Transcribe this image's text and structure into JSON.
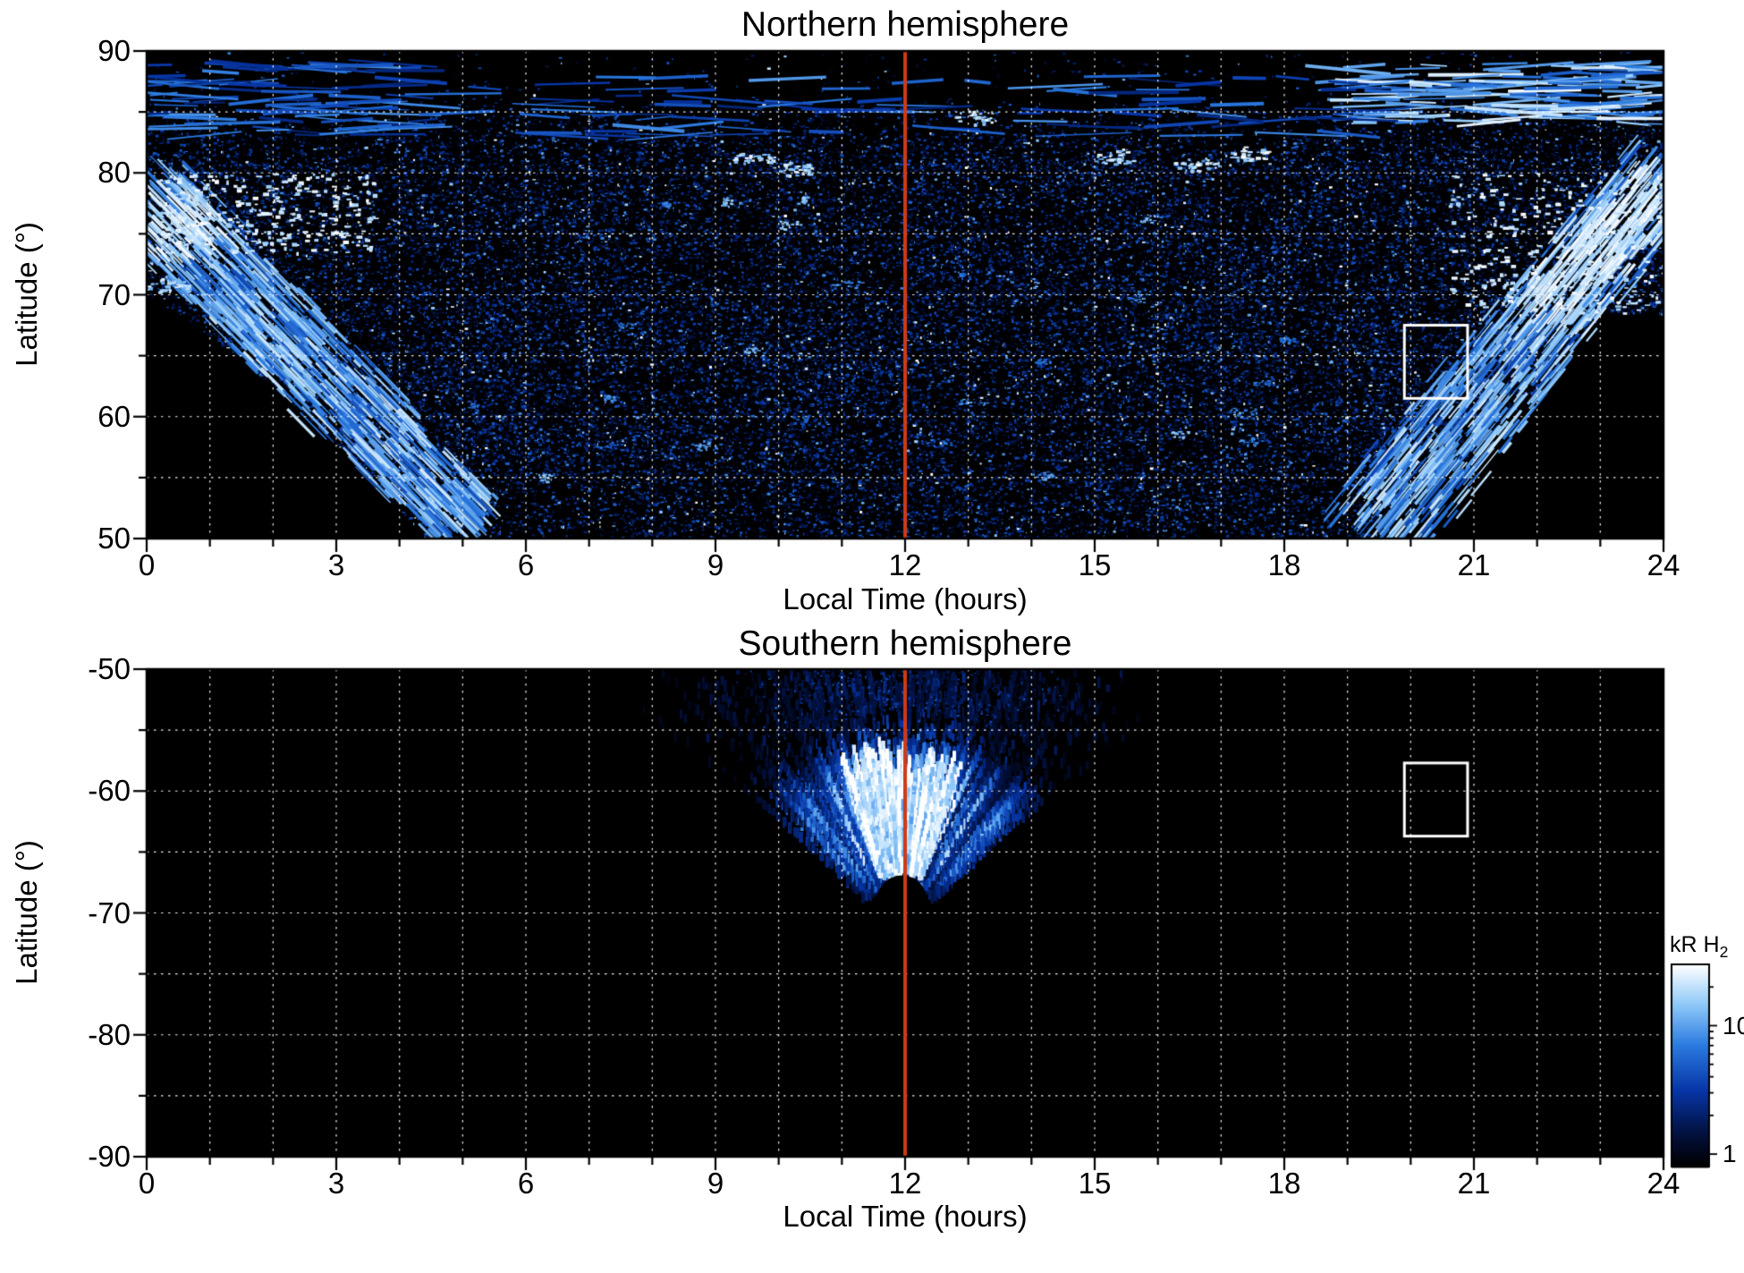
{
  "figure": {
    "background": "#ffffff",
    "text_color": "#000000",
    "frame_color": "#000000",
    "panels": [
      "Northern hemisphere",
      "Southern hemisphere"
    ]
  },
  "colorbar": {
    "label": "kR H",
    "label_sub": "2",
    "scale": "log",
    "range": [
      0.8,
      30
    ],
    "labeled_ticks": [
      10,
      1
    ],
    "minor_ticks": [
      20,
      9,
      8,
      7,
      6,
      5,
      4,
      3,
      2
    ],
    "colormap_stops": [
      {
        "t": 0.0,
        "color": "#000000"
      },
      {
        "t": 0.16,
        "color": "#02103c"
      },
      {
        "t": 0.38,
        "color": "#0736a8"
      },
      {
        "t": 0.6,
        "color": "#2b7ae0"
      },
      {
        "t": 0.8,
        "color": "#8ec8f8"
      },
      {
        "t": 1.0,
        "color": "#ffffff"
      }
    ]
  },
  "chart_data": [
    {
      "type": "heatmap",
      "hemisphere": "north",
      "title": "Northern hemisphere",
      "xlabel": "Local Time (hours)",
      "ylabel": "Latitude (°)",
      "xlim": [
        0,
        24
      ],
      "ylim": [
        50,
        90
      ],
      "xticks": [
        0,
        3,
        6,
        9,
        12,
        15,
        18,
        21,
        24
      ],
      "yticks": [
        90,
        80,
        70,
        60,
        50
      ],
      "x_minor_step": 1,
      "y_minor_step": 5,
      "grid": {
        "x_step": 1,
        "y_step": 5,
        "style": "dotted",
        "color": "#ffffff"
      },
      "intensity_units": "kR H2",
      "annotations": {
        "noon_meridian": {
          "local_time": 12,
          "color": "#cf3a16"
        },
        "selection_box": {
          "lt": [
            19.9,
            20.9
          ],
          "lat": [
            61.5,
            67.5
          ],
          "color": "#ffffff"
        }
      },
      "features": {
        "diffuse_speckle": {
          "lt": [
            0,
            24
          ],
          "lat": [
            50,
            83
          ],
          "note": "patchy faint H2 emission over most of the cap"
        },
        "dawn_arc": {
          "lt_path": [
            [
              0,
              78
            ],
            [
              5.1,
              51
            ]
          ],
          "width_deg": 7,
          "core": {
            "lt": [
              0.2,
              3.6
            ],
            "lat": [
              73.5,
              80
            ]
          }
        },
        "dusk_arc": {
          "lt_path": [
            [
              19.3,
              50
            ],
            [
              24,
              80
            ]
          ],
          "width_deg": 8,
          "core": {
            "lt": [
              20.6,
              24
            ],
            "lat": [
              68,
              80
            ]
          }
        },
        "polar_streak_bands": [
          {
            "lt": [
              0,
              4.5
            ],
            "lat": [
              83,
              89
            ],
            "bright": false
          },
          {
            "lt": [
              19,
              24
            ],
            "lat": [
              84,
              89
            ],
            "bright": true
          },
          {
            "lt": [
              4.5,
              19.5
            ],
            "lat": [
              83,
              88
            ],
            "bright": false
          }
        ],
        "bright_spots": [
          [
            9.6,
            81.2
          ],
          [
            10.2,
            80.3
          ],
          [
            15.3,
            81.3
          ],
          [
            16.6,
            80.8
          ],
          [
            17.4,
            81.6
          ],
          [
            13.1,
            84.6
          ],
          [
            0.3,
            70.8
          ]
        ],
        "no_data_regions": [
          {
            "desc": "dawn-side low-latitude wedge",
            "boundary": "lat < 70 - 3.1*LT - 0.33*LT^2 for LT < 4.4"
          },
          {
            "desc": "dusk-side low-latitude wedge",
            "boundary": "lat < min(68.5, 50 + 4.2*(LT-19.4) + 0.25*(LT-19.4)^2) for LT > 19.4"
          }
        ]
      }
    },
    {
      "type": "heatmap",
      "hemisphere": "south",
      "title": "Southern hemisphere",
      "xlabel": "Local Time (hours)",
      "ylabel": "Latitude (°)",
      "xlim": [
        0,
        24
      ],
      "ylim": [
        -90,
        -50
      ],
      "xticks": [
        0,
        3,
        6,
        9,
        12,
        15,
        18,
        21,
        24
      ],
      "yticks": [
        -50,
        -60,
        -70,
        -80,
        -90
      ],
      "x_minor_step": 1,
      "y_minor_step": 5,
      "grid": {
        "x_step": 1,
        "y_step": 5,
        "style": "dotted",
        "color": "#ffffff"
      },
      "intensity_units": "kR H2",
      "annotations": {
        "noon_meridian": {
          "local_time": 12,
          "color": "#cf3a16"
        },
        "selection_box": {
          "lt": [
            19.9,
            20.9
          ],
          "lat": [
            -57.7,
            -63.7
          ],
          "color": "#ffffff"
        }
      },
      "features": {
        "noon_fan": {
          "apex_lt": 11.93,
          "apex_lat": -71.8,
          "half_angle_deg": 43,
          "inner_edge_lat": -67.3,
          "outer_edge_lat": -50,
          "white_core": {
            "lt": [
              10.3,
              13.6
            ],
            "lat": [
              -57,
              -65.5
            ]
          },
          "dark_gap_lat": [
            -53.5,
            -56.2
          ],
          "speckle_cap": {
            "lt": [
              9,
              15
            ],
            "lat": [
              -50,
              -53.5
            ]
          },
          "black_notch": {
            "lt": [
              11.55,
              12.35
            ],
            "lat": [
              -66.4,
              -69.0
            ]
          }
        },
        "no_data_regions": [
          {
            "desc": "all local times outside the noon fan are black (no coverage)"
          }
        ]
      }
    }
  ]
}
